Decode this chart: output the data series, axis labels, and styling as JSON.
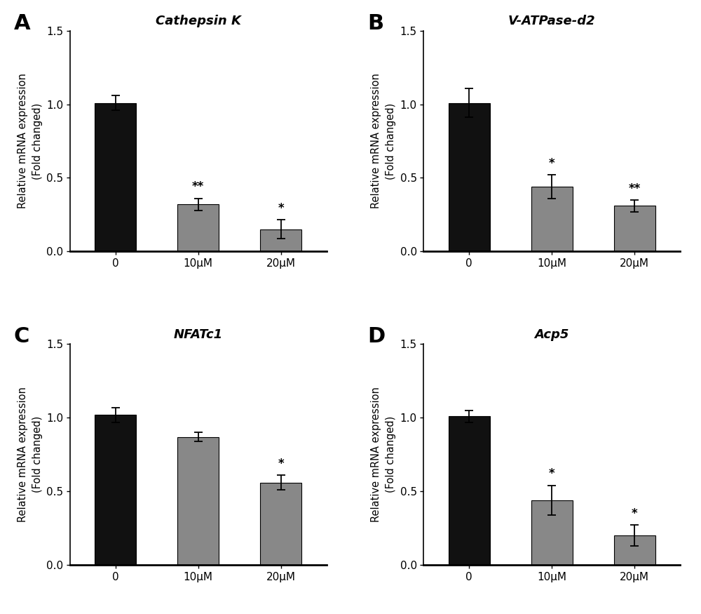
{
  "panels": [
    {
      "label": "A",
      "title": "Cathepsin K",
      "categories": [
        "0",
        "10μM",
        "20μM"
      ],
      "values": [
        1.01,
        0.32,
        0.15
      ],
      "errors": [
        0.05,
        0.04,
        0.065
      ],
      "bar_colors": [
        "#111111",
        "#888888",
        "#888888"
      ],
      "significance": [
        "",
        "**",
        "*"
      ],
      "ylim": [
        0,
        1.5
      ],
      "yticks": [
        0.0,
        0.5,
        1.0,
        1.5
      ]
    },
    {
      "label": "B",
      "title": "V-ATPase-d2",
      "categories": [
        "0",
        "10μM",
        "20μM"
      ],
      "values": [
        1.01,
        0.44,
        0.31
      ],
      "errors": [
        0.1,
        0.08,
        0.04
      ],
      "bar_colors": [
        "#111111",
        "#888888",
        "#888888"
      ],
      "significance": [
        "",
        "*",
        "**"
      ],
      "ylim": [
        0,
        1.5
      ],
      "yticks": [
        0.0,
        0.5,
        1.0,
        1.5
      ]
    },
    {
      "label": "C",
      "title": "NFATc1",
      "categories": [
        "0",
        "10μM",
        "20μM"
      ],
      "values": [
        1.02,
        0.87,
        0.56
      ],
      "errors": [
        0.05,
        0.03,
        0.05
      ],
      "bar_colors": [
        "#111111",
        "#888888",
        "#888888"
      ],
      "significance": [
        "",
        "",
        "*"
      ],
      "ylim": [
        0,
        1.5
      ],
      "yticks": [
        0.0,
        0.5,
        1.0,
        1.5
      ]
    },
    {
      "label": "D",
      "title": "Acp5",
      "categories": [
        "0",
        "10μM",
        "20μM"
      ],
      "values": [
        1.01,
        0.44,
        0.2
      ],
      "errors": [
        0.04,
        0.1,
        0.07
      ],
      "bar_colors": [
        "#111111",
        "#888888",
        "#888888"
      ],
      "significance": [
        "",
        "*",
        "*"
      ],
      "ylim": [
        0,
        1.5
      ],
      "yticks": [
        0.0,
        0.5,
        1.0,
        1.5
      ]
    }
  ],
  "ylabel": "Relative mRNA expression\n(Fold changed)",
  "background_color": "#ffffff",
  "bar_width": 0.5,
  "label_fontsize": 22,
  "title_fontsize": 13,
  "tick_fontsize": 11,
  "ylabel_fontsize": 10.5,
  "sig_fontsize": 12
}
